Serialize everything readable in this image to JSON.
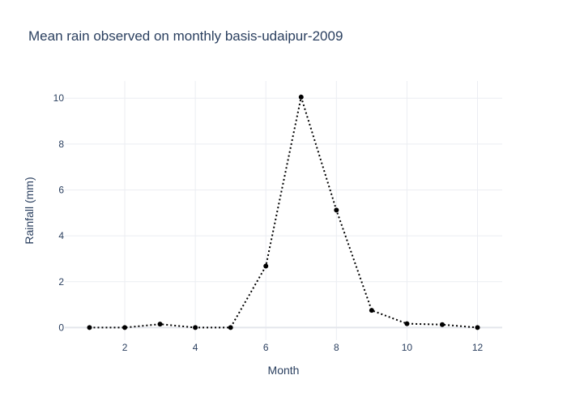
{
  "chart_data": {
    "type": "line",
    "title": "Mean rain observed on monthly basis-udaipur-2009",
    "xlabel": "Month",
    "ylabel": "Rainfall (mm)",
    "x": [
      1,
      2,
      3,
      4,
      5,
      6,
      7,
      8,
      9,
      10,
      11,
      12
    ],
    "series": [
      {
        "values": [
          0.0,
          0.0,
          0.15,
          0.0,
          0.0,
          2.68,
          10.05,
          5.12,
          0.75,
          0.17,
          0.13,
          0.0
        ],
        "color": "#000000",
        "line_style": "dotted",
        "markers": true
      }
    ],
    "xlim": [
      0.3,
      12.7
    ],
    "ylim": [
      -0.55,
      10.75
    ],
    "x_ticks": [
      "2",
      "4",
      "6",
      "8",
      "10",
      "12"
    ],
    "y_ticks": [
      "0",
      "2",
      "4",
      "6",
      "8",
      "10"
    ],
    "grid": true,
    "legend": "none"
  }
}
